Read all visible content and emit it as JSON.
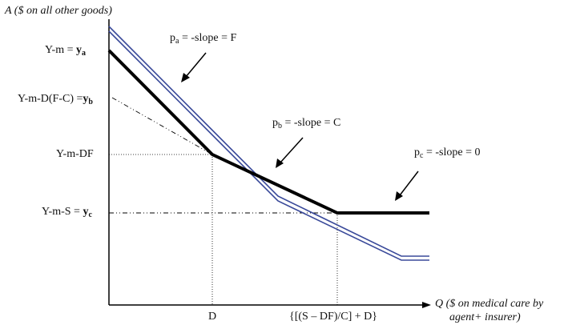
{
  "axes": {
    "y_label": "A ($ on  all other goods)",
    "x_label_line1": "Q ($ on  medical care by",
    "x_label_line2": "agent+ insurer)"
  },
  "y_ticks": {
    "ya_prefix": "Y-m = ",
    "ya_var": "y",
    "ya_sub": "a",
    "yb_prefix": "Y-m-D(F-C) =",
    "yb_var": "y",
    "yb_sub": "b",
    "ydf": "Y-m-DF",
    "yc_prefix": "Y-m-S = ",
    "yc_var": "y",
    "yc_sub": "c"
  },
  "x_ticks": {
    "d": "D",
    "s": "{[(S – DF)/C] + D}"
  },
  "annotations": {
    "pa_p": "p",
    "pa_sub": "a",
    "pa_rest": " = -slope = F",
    "pb_p": "p",
    "pb_sub": "b",
    "pb_rest": " = -slope = C",
    "pc_p": "p",
    "pc_sub": "c",
    "pc_rest": " = -slope = 0"
  },
  "colors": {
    "axis": "#000000",
    "budget_line": "#3a4a9a",
    "kinked_line": "#000000"
  }
}
